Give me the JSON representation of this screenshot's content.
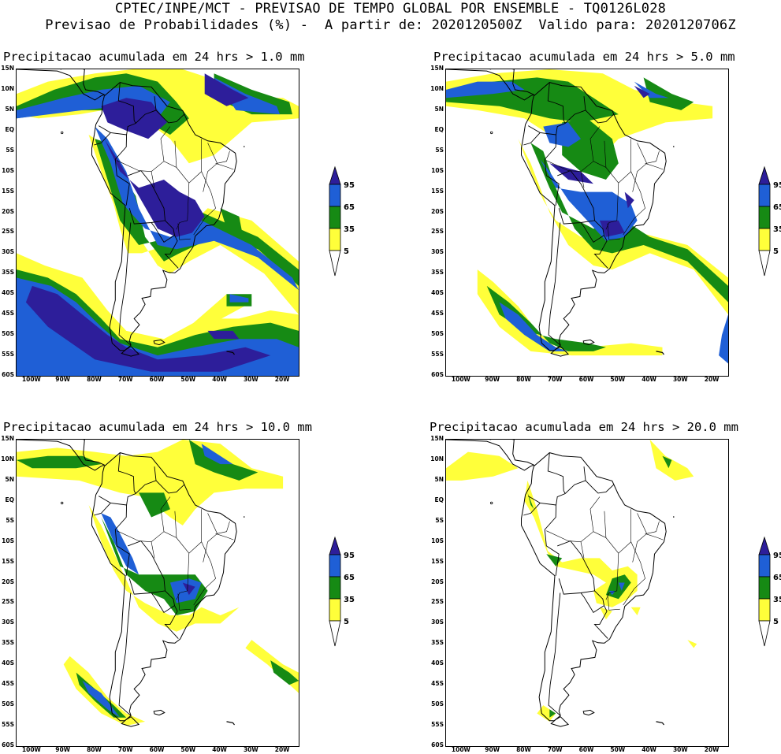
{
  "header": {
    "line1": "CPTEC/INPE/MCT - PREVISAO DE TEMPO GLOBAL POR ENSEMBLE - TQ0126L028",
    "line2": "Previsao de Probabilidades (%) -  A partir de: 2020120500Z  Valido para: 2020120706Z"
  },
  "axes": {
    "lat_labels": [
      "15N",
      "10N",
      "5N",
      "EQ",
      "5S",
      "10S",
      "15S",
      "20S",
      "25S",
      "30S",
      "35S",
      "40S",
      "45S",
      "50S",
      "55S",
      "60S"
    ],
    "lon_labels": [
      "100W",
      "90W",
      "80W",
      "70W",
      "60W",
      "50W",
      "40W",
      "30W",
      "20W"
    ]
  },
  "legend": {
    "labels": [
      "95",
      "65",
      "35",
      "5"
    ],
    "colors": [
      "#2d1e9a",
      "#1f5fd6",
      "#168a14",
      "#ffff3a"
    ]
  },
  "panels": [
    {
      "title": "Precipitacao acumulada em 24 hrs > 1.0 mm"
    },
    {
      "title": "Precipitacao acumulada em 24 hrs > 5.0 mm"
    },
    {
      "title": "Precipitacao acumulada em 24 hrs > 10.0 mm"
    },
    {
      "title": "Precipitacao acumulada em 24 hrs > 20.0 mm"
    }
  ]
}
